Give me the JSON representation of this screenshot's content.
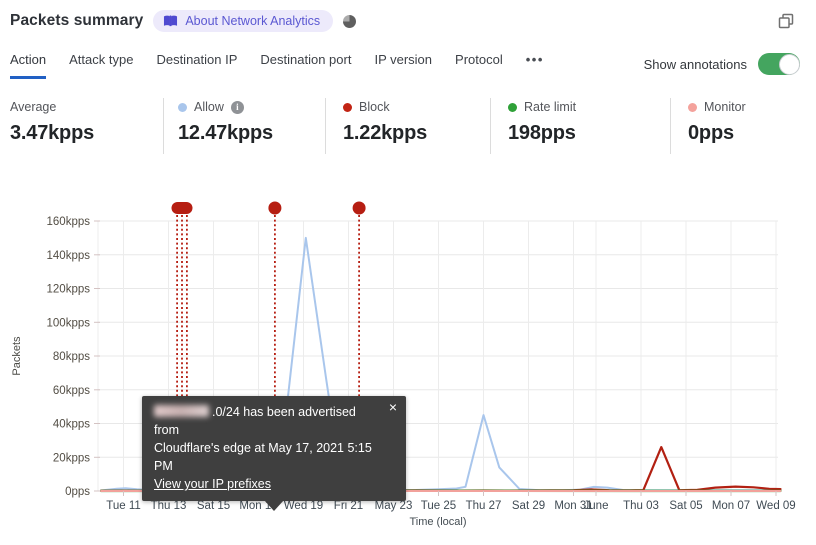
{
  "header": {
    "title": "Packets summary",
    "about_label": "About Network Analytics",
    "icons": [
      "book-icon",
      "pie-status-icon",
      "open-window-icon"
    ]
  },
  "tabs": {
    "items": [
      "Action",
      "Attack type",
      "Destination IP",
      "Destination port",
      "IP version",
      "Protocol"
    ],
    "active_index": 0,
    "more_label": "•••"
  },
  "controls": {
    "show_annotations_label": "Show annotations",
    "annotations_on": true,
    "toggle_color": "#44a55f"
  },
  "stats": [
    {
      "label": "Average",
      "value": "3.47kpps",
      "dot_color": null
    },
    {
      "label": "Allow",
      "value": "12.47kpps",
      "dot_color": "#a9c6ec",
      "has_info": true
    },
    {
      "label": "Block",
      "value": "1.22kpps",
      "dot_color": "#c22414"
    },
    {
      "label": "Rate limit",
      "value": "198pps",
      "dot_color": "#2fa138"
    },
    {
      "label": "Monitor",
      "value": "0pps",
      "dot_color": "#f4a29c"
    }
  ],
  "tooltip": {
    "redacted_prefix": true,
    "line1_suffix": ".0/24 has been advertised from",
    "line2": "Cloudflare's edge at May 17, 2021 5:15 PM",
    "link_label": "View your IP prefixes",
    "close_label": "×"
  },
  "chart_data": {
    "type": "line",
    "title": "Packets summary",
    "xlabel": "Time (local)",
    "ylabel": "Packets",
    "value_unit": "kpps",
    "x_unit": "days since 2021-05-10 (local)",
    "ylim": [
      0,
      160
    ],
    "y_tick_step": 20,
    "grid": true,
    "legend_position": "stats-row-above",
    "x_ticks": [
      {
        "t": 1,
        "label": "Tue 11"
      },
      {
        "t": 3,
        "label": "Thu 13"
      },
      {
        "t": 5,
        "label": "Sat 15"
      },
      {
        "t": 7,
        "label": "Mon 17"
      },
      {
        "t": 9,
        "label": "Wed 19"
      },
      {
        "t": 11,
        "label": "Fri 21"
      },
      {
        "t": 13,
        "label": "May 23"
      },
      {
        "t": 15,
        "label": "Tue 25"
      },
      {
        "t": 17,
        "label": "Thu 27"
      },
      {
        "t": 19,
        "label": "Sat 29"
      },
      {
        "t": 21,
        "label": "Mon 31"
      },
      {
        "t": 22,
        "label": "June"
      },
      {
        "t": 24,
        "label": "Thu 03"
      },
      {
        "t": 26,
        "label": "Sat 05"
      },
      {
        "t": 28,
        "label": "Mon 07"
      },
      {
        "t": 30,
        "label": "Wed 09"
      }
    ],
    "series": [
      {
        "name": "Allow",
        "color": "#a9c6ec",
        "width": 2,
        "points": [
          [
            0,
            0.3
          ],
          [
            0.7,
            1.3
          ],
          [
            1.1,
            1.6
          ],
          [
            1.6,
            1.0
          ],
          [
            2.2,
            0.5
          ],
          [
            3,
            0.4
          ],
          [
            4,
            0.3
          ],
          [
            5,
            0.3
          ],
          [
            6,
            0.4
          ],
          [
            6.6,
            1.2
          ],
          [
            7.0,
            1.8
          ],
          [
            7.4,
            1.0
          ],
          [
            7.8,
            3
          ],
          [
            8.3,
            55
          ],
          [
            9.1,
            150
          ],
          [
            10.0,
            67
          ],
          [
            10.3,
            40
          ],
          [
            10.8,
            3
          ],
          [
            11.2,
            1
          ],
          [
            12,
            0.6
          ],
          [
            13,
            0.5
          ],
          [
            14,
            0.6
          ],
          [
            15,
            1.0
          ],
          [
            15.8,
            1.5
          ],
          [
            16.2,
            2.5
          ],
          [
            17.0,
            45
          ],
          [
            17.7,
            14
          ],
          [
            18.6,
            1.2
          ],
          [
            19.5,
            0.5
          ],
          [
            20.5,
            0.5
          ],
          [
            21.3,
            0.8
          ],
          [
            21.9,
            2.4
          ],
          [
            22.5,
            2.0
          ],
          [
            23.2,
            0.6
          ],
          [
            24,
            0.4
          ],
          [
            25,
            0.4
          ],
          [
            26,
            0.4
          ],
          [
            27,
            0.5
          ],
          [
            28,
            0.4
          ],
          [
            29,
            0.4
          ],
          [
            30.2,
            0.4
          ]
        ]
      },
      {
        "name": "Block",
        "color": "#b22012",
        "width": 2.2,
        "points": [
          [
            0,
            0.2
          ],
          [
            1,
            0.25
          ],
          [
            2,
            0.2
          ],
          [
            3,
            0.2
          ],
          [
            4,
            0.15
          ],
          [
            5,
            0.2
          ],
          [
            6,
            0.3
          ],
          [
            6.7,
            1.5
          ],
          [
            7.1,
            2.8
          ],
          [
            7.6,
            2.2
          ],
          [
            8.2,
            0.6
          ],
          [
            9,
            0.3
          ],
          [
            10,
            0.25
          ],
          [
            11,
            0.2
          ],
          [
            12,
            0.2
          ],
          [
            13,
            0.3
          ],
          [
            14,
            0.4
          ],
          [
            15,
            0.3
          ],
          [
            16,
            0.25
          ],
          [
            17,
            0.3
          ],
          [
            18,
            0.25
          ],
          [
            19,
            0.3
          ],
          [
            20,
            0.35
          ],
          [
            21,
            0.5
          ],
          [
            21.8,
            0.9
          ],
          [
            22.6,
            0.5
          ],
          [
            23.5,
            0.4
          ],
          [
            24.1,
            0.5
          ],
          [
            24.9,
            26
          ],
          [
            25.7,
            0.5
          ],
          [
            26.5,
            0.7
          ],
          [
            27.3,
            2.0
          ],
          [
            28.2,
            2.6
          ],
          [
            29.0,
            2.2
          ],
          [
            29.7,
            1.3
          ],
          [
            30.2,
            1.1
          ]
        ]
      },
      {
        "name": "Rate limit",
        "color": "#2e9e35",
        "width": 2.4,
        "points": [
          [
            0,
            0.05
          ],
          [
            5.9,
            0.05
          ],
          [
            6.3,
            1.5
          ],
          [
            6.7,
            5.8
          ],
          [
            7.1,
            4.5
          ],
          [
            7.5,
            2.0
          ],
          [
            8.1,
            0.1
          ],
          [
            30.2,
            0.05
          ]
        ]
      },
      {
        "name": "Monitor",
        "color": "#f2a19b",
        "width": 2,
        "points": [
          [
            0,
            0
          ],
          [
            30.2,
            0
          ]
        ]
      }
    ],
    "annotations": {
      "color": "#b61e12",
      "items": [
        {
          "kind": "cluster",
          "lines": [
            3.38,
            3.6,
            3.82
          ]
        },
        {
          "kind": "single",
          "lines": [
            7.73
          ]
        },
        {
          "kind": "single",
          "lines": [
            11.47
          ]
        }
      ]
    }
  }
}
